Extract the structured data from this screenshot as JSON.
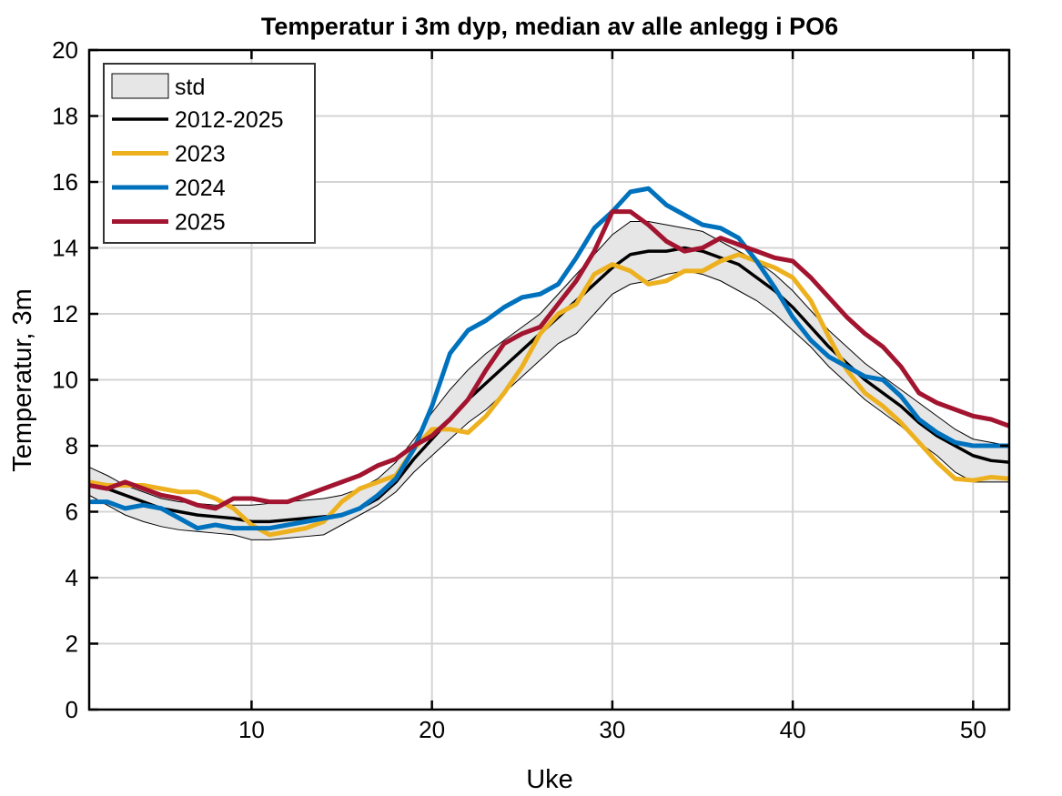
{
  "chart_data": {
    "type": "line",
    "title": "Temperatur i 3m dyp, median av alle anlegg i PO6",
    "xlabel": "Uke",
    "ylabel": "Temperatur, 3m",
    "xlim": [
      1,
      52
    ],
    "ylim": [
      0,
      20
    ],
    "xticks": [
      10,
      20,
      30,
      40,
      50
    ],
    "yticks": [
      0,
      2,
      4,
      6,
      8,
      10,
      12,
      14,
      16,
      18,
      20
    ],
    "grid": true,
    "legend_position": "top-left",
    "x": [
      1,
      2,
      3,
      4,
      5,
      6,
      7,
      8,
      9,
      10,
      11,
      12,
      13,
      14,
      15,
      16,
      17,
      18,
      19,
      20,
      21,
      22,
      23,
      24,
      25,
      26,
      27,
      28,
      29,
      30,
      31,
      32,
      33,
      34,
      35,
      36,
      37,
      38,
      39,
      40,
      41,
      42,
      43,
      44,
      45,
      46,
      47,
      48,
      49,
      50,
      51,
      52
    ],
    "band": {
      "name": "std",
      "color": "#e6e6e6",
      "upper": [
        7.35,
        7.1,
        6.8,
        6.6,
        6.4,
        6.3,
        6.25,
        6.2,
        6.2,
        6.2,
        6.25,
        6.3,
        6.35,
        6.4,
        6.5,
        6.7,
        7.0,
        7.5,
        8.2,
        9.0,
        9.7,
        10.3,
        10.8,
        11.2,
        11.6,
        12.0,
        12.6,
        13.2,
        13.8,
        14.4,
        14.8,
        14.8,
        14.7,
        14.6,
        14.5,
        14.2,
        13.9,
        13.6,
        13.2,
        12.7,
        12.1,
        11.5,
        11.0,
        10.5,
        10.1,
        9.7,
        9.3,
        8.9,
        8.5,
        8.2,
        8.1,
        8.0
      ],
      "lower": [
        6.5,
        6.2,
        5.9,
        5.7,
        5.55,
        5.45,
        5.4,
        5.35,
        5.3,
        5.15,
        5.15,
        5.2,
        5.25,
        5.3,
        5.6,
        5.9,
        6.2,
        6.6,
        7.2,
        7.7,
        8.2,
        8.7,
        9.1,
        9.6,
        10.1,
        10.6,
        11.1,
        11.4,
        12.0,
        12.6,
        12.9,
        13.0,
        13.2,
        13.3,
        13.2,
        13.0,
        12.7,
        12.4,
        12.0,
        11.5,
        11.0,
        10.4,
        9.9,
        9.4,
        9.0,
        8.6,
        8.1,
        7.7,
        7.2,
        6.9,
        6.9,
        6.9
      ]
    },
    "series": [
      {
        "name": "2012-2025",
        "color": "#000000",
        "values": [
          6.9,
          6.7,
          6.5,
          6.3,
          6.1,
          6.0,
          5.9,
          5.85,
          5.8,
          5.7,
          5.7,
          5.75,
          5.8,
          5.85,
          5.9,
          6.1,
          6.4,
          6.9,
          7.6,
          8.2,
          8.8,
          9.4,
          9.9,
          10.4,
          10.9,
          11.4,
          11.9,
          12.4,
          12.9,
          13.4,
          13.8,
          13.9,
          13.9,
          14.0,
          13.9,
          13.7,
          13.5,
          13.1,
          12.7,
          12.2,
          11.6,
          11.0,
          10.5,
          10.0,
          9.6,
          9.2,
          8.7,
          8.3,
          8.0,
          7.7,
          7.55,
          7.5
        ]
      },
      {
        "name": "2023",
        "color": "#edb120",
        "values": [
          6.9,
          6.8,
          6.8,
          6.8,
          6.7,
          6.6,
          6.6,
          6.4,
          6.1,
          5.6,
          5.3,
          5.4,
          5.5,
          5.7,
          6.3,
          6.7,
          6.9,
          7.1,
          7.9,
          8.5,
          8.5,
          8.4,
          8.9,
          9.6,
          10.4,
          11.4,
          12.0,
          12.3,
          13.2,
          13.5,
          13.3,
          12.9,
          13.0,
          13.3,
          13.3,
          13.6,
          13.8,
          13.6,
          13.4,
          13.1,
          12.4,
          11.3,
          10.3,
          9.6,
          9.2,
          8.7,
          8.1,
          7.5,
          7.0,
          6.95,
          7.05,
          7.0
        ]
      },
      {
        "name": "2024",
        "color": "#0072bd",
        "values": [
          6.3,
          6.3,
          6.1,
          6.2,
          6.1,
          5.8,
          5.5,
          5.6,
          5.5,
          5.5,
          5.5,
          5.6,
          5.7,
          5.8,
          5.9,
          6.1,
          6.5,
          7.0,
          7.9,
          9.2,
          10.8,
          11.5,
          11.8,
          12.2,
          12.5,
          12.6,
          12.9,
          13.7,
          14.6,
          15.1,
          15.7,
          15.8,
          15.3,
          15.0,
          14.7,
          14.6,
          14.3,
          13.6,
          12.8,
          11.9,
          11.2,
          10.7,
          10.4,
          10.1,
          10.0,
          9.5,
          8.8,
          8.4,
          8.1,
          8.0,
          8.0,
          8.0
        ]
      },
      {
        "name": "2025",
        "color": "#a2142f",
        "values": [
          6.8,
          6.7,
          6.9,
          6.7,
          6.5,
          6.4,
          6.2,
          6.1,
          6.4,
          6.4,
          6.3,
          6.3,
          6.5,
          6.7,
          6.9,
          7.1,
          7.4,
          7.6,
          8.0,
          8.3,
          8.8,
          9.4,
          10.3,
          11.1,
          11.4,
          11.6,
          12.3,
          13.0,
          13.9,
          15.1,
          15.1,
          14.7,
          14.2,
          13.9,
          14.0,
          14.3,
          14.1,
          13.9,
          13.7,
          13.6,
          13.1,
          12.5,
          11.9,
          11.4,
          11.0,
          10.4,
          9.6,
          9.3,
          9.1,
          8.9,
          8.8,
          8.6
        ]
      }
    ]
  }
}
